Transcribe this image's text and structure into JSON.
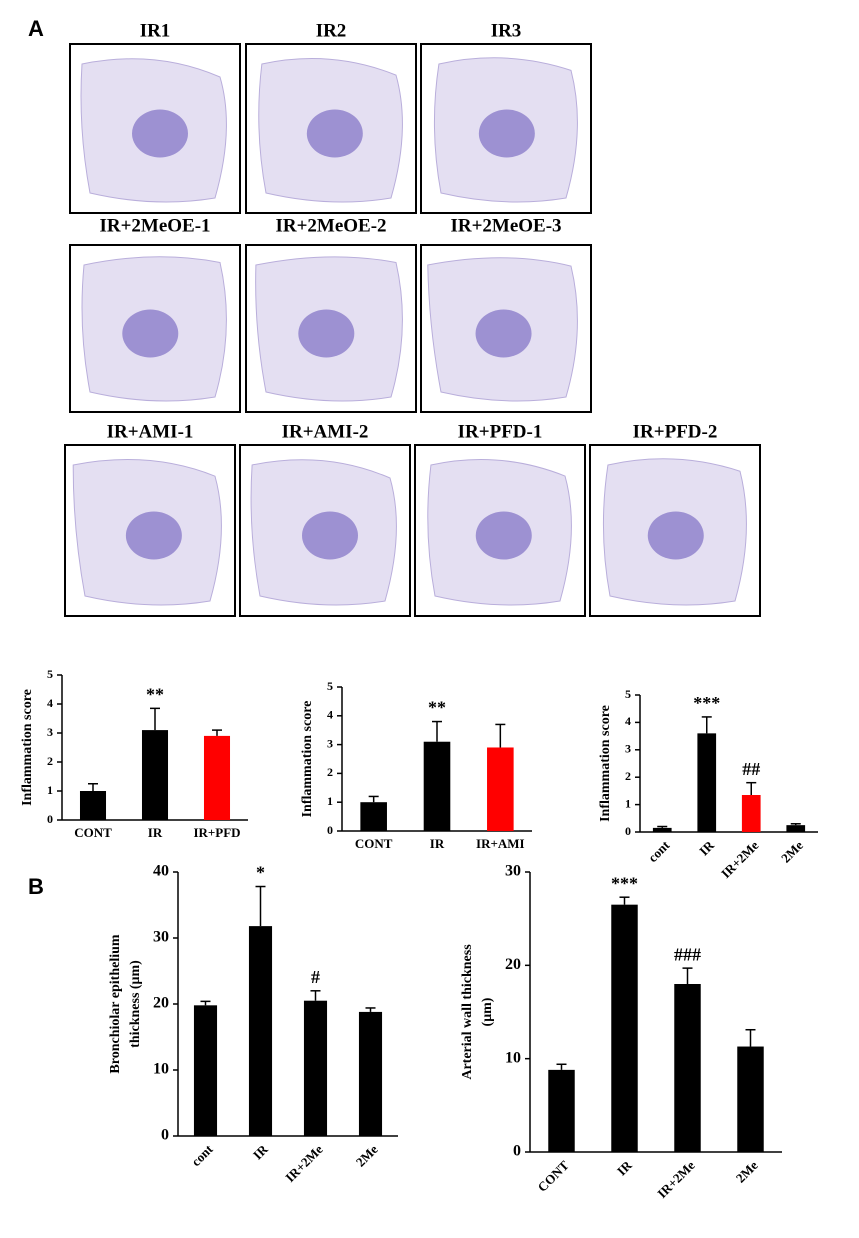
{
  "panel_labels": [
    "A",
    "B"
  ],
  "panel_a": {
    "image_rows": [
      [
        "IR1",
        "IR2",
        "IR3"
      ],
      [
        "IR+2MeOE-1",
        "IR+2MeOE-2",
        "IR+2MeOE-3"
      ],
      [
        "IR+AMI-1",
        "IR+AMI-2",
        "IR+PFD-1",
        "IR+PFD-2"
      ]
    ]
  },
  "chart_data": [
    {
      "type": "bar",
      "ylabel": [
        "Inflammation score"
      ],
      "categories": [
        "CONT",
        "IR",
        "IR+PFD"
      ],
      "values": [
        1.0,
        3.1,
        2.9
      ],
      "errors": [
        0.25,
        0.75,
        0.2
      ],
      "colors": [
        "#000000",
        "#000000",
        "#ff0000"
      ],
      "annotations": [
        null,
        "**",
        null
      ],
      "ylim": [
        0,
        5
      ],
      "yticks": [
        0,
        1,
        2,
        3,
        4,
        5
      ]
    },
    {
      "type": "bar",
      "ylabel": [
        "Inflammation score"
      ],
      "categories": [
        "CONT",
        "IR",
        "IR+AMI"
      ],
      "values": [
        1.0,
        3.1,
        2.9
      ],
      "errors": [
        0.2,
        0.7,
        0.8
      ],
      "colors": [
        "#000000",
        "#000000",
        "#ff0000"
      ],
      "annotations": [
        null,
        "**",
        null
      ],
      "ylim": [
        0,
        5
      ],
      "yticks": [
        0,
        1,
        2,
        3,
        4,
        5
      ]
    },
    {
      "type": "bar",
      "ylabel": [
        "Inflammation score"
      ],
      "categories": [
        "cont",
        "IR",
        "IR+2Me",
        "2Me"
      ],
      "values": [
        0.15,
        3.6,
        1.35,
        0.25
      ],
      "errors": [
        0.05,
        0.6,
        0.45,
        0.05
      ],
      "colors": [
        "#000000",
        "#000000",
        "#ff0000",
        "#000000"
      ],
      "annotations": [
        null,
        "***",
        "##",
        null
      ],
      "ylim": [
        0,
        5
      ],
      "yticks": [
        0,
        1,
        2,
        3,
        4,
        5
      ]
    },
    {
      "type": "bar",
      "ylabel": [
        "Bronchiolar epithelium",
        "thickness (μm)"
      ],
      "categories": [
        "cont",
        "IR",
        "IR+2Me",
        "2Me"
      ],
      "values": [
        19.8,
        31.8,
        20.5,
        18.8
      ],
      "errors": [
        0.6,
        6,
        1.5,
        0.6
      ],
      "colors": [
        "#000000",
        "#000000",
        "#000000",
        "#000000"
      ],
      "annotations": [
        null,
        "*",
        "#",
        null
      ],
      "ylim": [
        0,
        40
      ],
      "yticks": [
        0,
        10,
        20,
        30,
        40
      ]
    },
    {
      "type": "bar",
      "ylabel": [
        "Arterial wall thickness",
        "(μm)"
      ],
      "categories": [
        "CONT",
        "IR",
        "IR+2Me",
        "2Me"
      ],
      "values": [
        8.8,
        26.5,
        18,
        11.3
      ],
      "errors": [
        0.6,
        0.8,
        1.7,
        1.8
      ],
      "colors": [
        "#000000",
        "#000000",
        "#000000",
        "#000000"
      ],
      "annotations": [
        null,
        "***",
        "###",
        null
      ],
      "ylim": [
        0,
        30
      ],
      "yticks": [
        0,
        10,
        20,
        30
      ]
    }
  ]
}
